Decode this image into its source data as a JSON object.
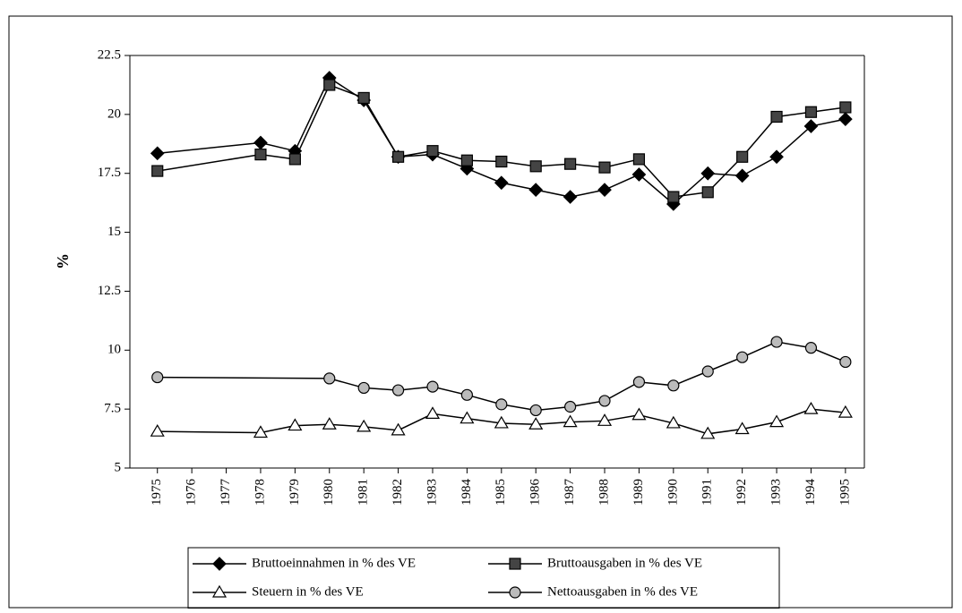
{
  "chart_data": {
    "type": "line",
    "y_label": "%",
    "xlim": [
      1974.2,
      1995.55
    ],
    "xticks": [
      1975,
      1976,
      1977,
      1978,
      1979,
      1980,
      1981,
      1982,
      1983,
      1984,
      1985,
      1986,
      1987,
      1988,
      1989,
      1990,
      1991,
      1992,
      1993,
      1994,
      1995
    ],
    "ylim": [
      5,
      22.5
    ],
    "yticks": [
      5,
      7.5,
      10,
      12.5,
      15,
      17.5,
      20,
      22.5
    ],
    "series": [
      {
        "name": "Bruttoeinnahmen in % des VE",
        "color": "#000000",
        "marker": "diamond",
        "x": [
          1975,
          1978,
          1979,
          1980,
          1981,
          1982,
          1983,
          1984,
          1985,
          1986,
          1987,
          1988,
          1989,
          1990,
          1991,
          1992,
          1993,
          1994,
          1995
        ],
        "values": [
          18.35,
          18.8,
          18.45,
          21.55,
          20.6,
          18.2,
          18.3,
          17.7,
          17.1,
          16.8,
          16.5,
          16.8,
          17.45,
          16.2,
          17.5,
          17.4,
          18.2,
          19.5,
          19.8
        ]
      },
      {
        "name": "Bruttoausgaben in % des VE",
        "color": "#000000",
        "marker": "square",
        "x": [
          1975,
          1978,
          1979,
          1980,
          1981,
          1982,
          1983,
          1984,
          1985,
          1986,
          1987,
          1988,
          1989,
          1990,
          1991,
          1992,
          1993,
          1994,
          1995
        ],
        "values": [
          17.6,
          18.3,
          18.1,
          21.25,
          20.7,
          18.2,
          18.45,
          18.05,
          18.0,
          17.8,
          17.9,
          17.75,
          18.1,
          16.5,
          16.7,
          18.2,
          19.9,
          20.1,
          20.3
        ]
      },
      {
        "name": "Steuern in % des VE",
        "color": "#000000",
        "marker": "triangle",
        "x": [
          1975,
          1978,
          1979,
          1980,
          1981,
          1982,
          1983,
          1984,
          1985,
          1986,
          1987,
          1988,
          1989,
          1990,
          1991,
          1992,
          1993,
          1994,
          1995
        ],
        "values": [
          6.55,
          6.5,
          6.8,
          6.85,
          6.75,
          6.6,
          7.3,
          7.1,
          6.9,
          6.85,
          6.95,
          7.0,
          7.25,
          6.9,
          6.45,
          6.65,
          6.95,
          7.5,
          7.35
        ]
      },
      {
        "name": "Nettoausgaben in % des VE",
        "color": "#000000",
        "marker": "circle",
        "x": [
          1975,
          1980,
          1981,
          1982,
          1983,
          1984,
          1985,
          1986,
          1987,
          1988,
          1989,
          1990,
          1991,
          1992,
          1993,
          1994,
          1995
        ],
        "values": [
          8.85,
          8.8,
          8.4,
          8.3,
          8.45,
          8.1,
          7.7,
          7.45,
          7.6,
          7.85,
          8.65,
          8.5,
          9.1,
          9.7,
          10.35,
          10.1,
          9.5
        ]
      }
    ]
  }
}
